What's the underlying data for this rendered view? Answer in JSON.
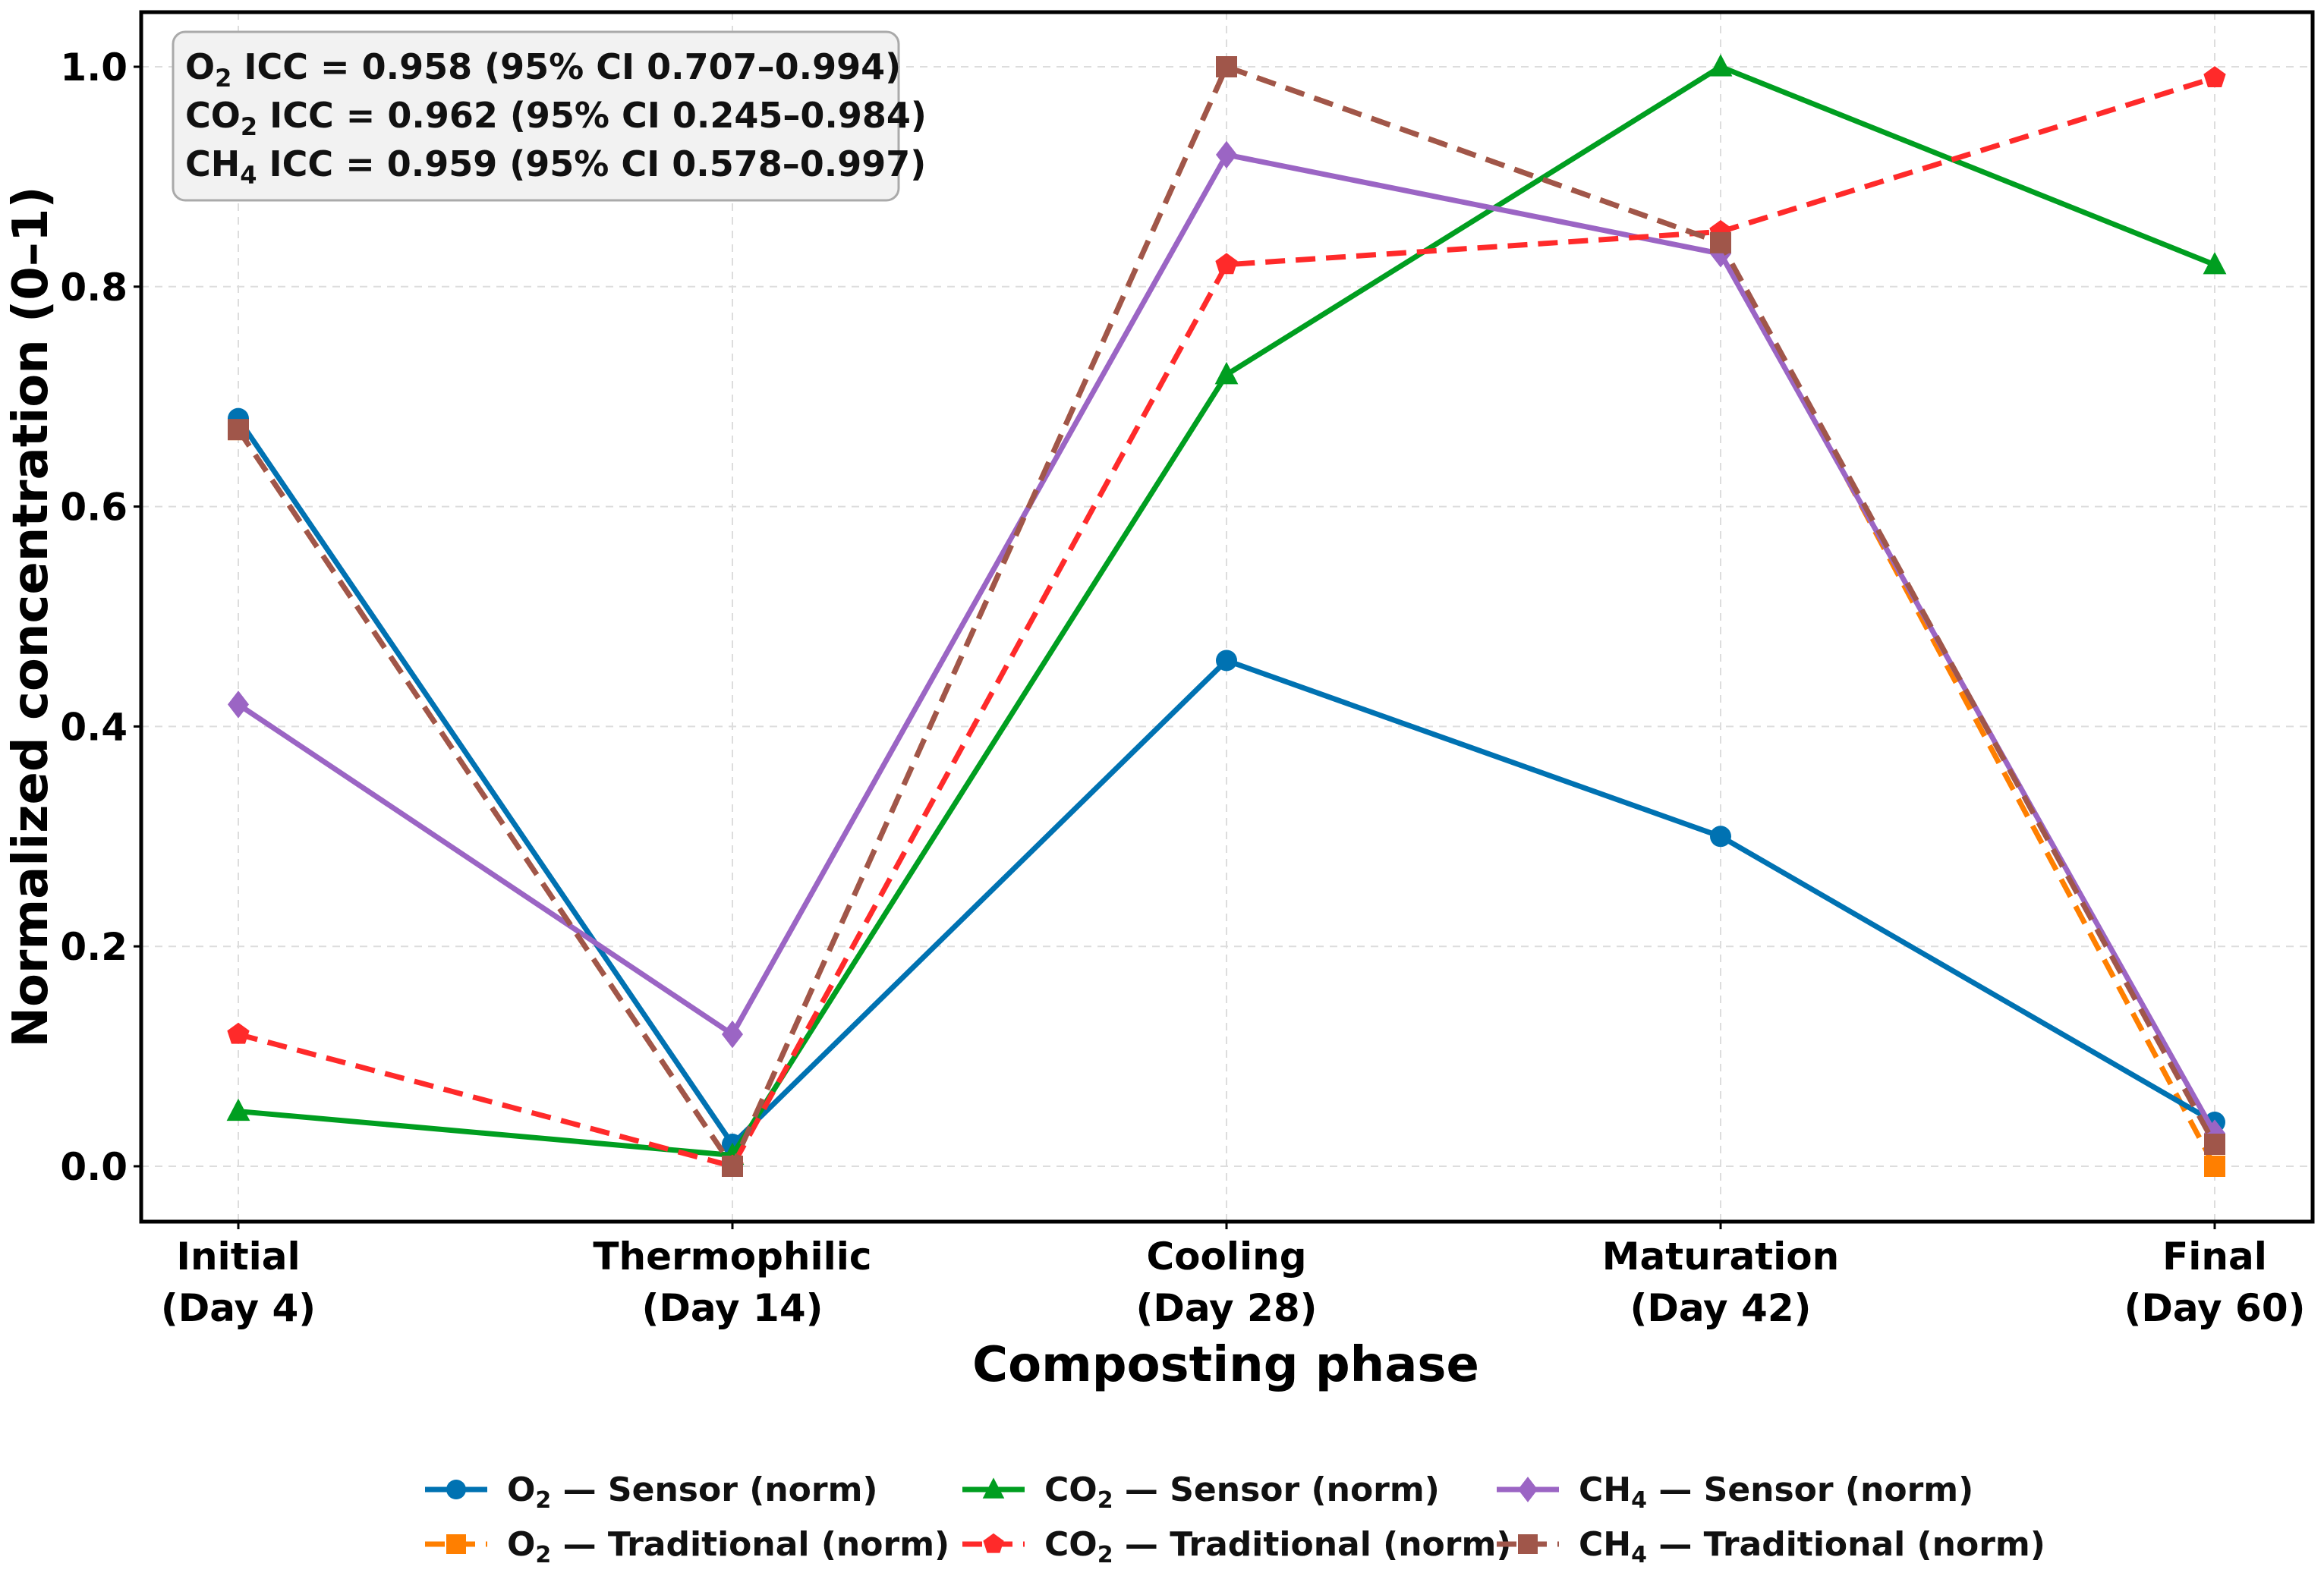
{
  "chart_data": {
    "type": "line",
    "title": "",
    "xlabel": "Composting phase",
    "ylabel": "Normalized concentration (0–1)",
    "ylim": [
      -0.05,
      1.05
    ],
    "grid": true,
    "categories": [
      [
        "Initial",
        "(Day 4)"
      ],
      [
        "Thermophilic",
        "(Day 14)"
      ],
      [
        "Cooling",
        "(Day 28)"
      ],
      [
        "Maturation",
        "(Day 42)"
      ],
      [
        "Final",
        "(Day 60)"
      ]
    ],
    "yticks": [
      "0.0",
      "0.2",
      "0.4",
      "0.6",
      "0.8",
      "1.0"
    ],
    "ytick_values": [
      0,
      0.2,
      0.4,
      0.6,
      0.8,
      1.0
    ],
    "annotation": [
      {
        "gas": "O",
        "sub": "2",
        "text": " ICC = 0.958 (95% CI 0.707–0.994)"
      },
      {
        "gas": "CO",
        "sub": "2",
        "text": " ICC = 0.962 (95% CI 0.245–0.984)"
      },
      {
        "gas": "CH",
        "sub": "4",
        "text": " ICC = 0.959 (95% CI 0.578–0.997)"
      }
    ],
    "legend_position": "bottom",
    "series": [
      {
        "name": "O2 — Sensor (norm)",
        "gas": "O",
        "sub": "2",
        "label": " — Sensor (norm)",
        "color": "#0072B2",
        "dash": "solid",
        "marker": "circle",
        "values": [
          0.68,
          0.02,
          0.46,
          0.3,
          0.04
        ]
      },
      {
        "name": "CO2 — Sensor (norm)",
        "gas": "CO",
        "sub": "2",
        "label": " — Sensor (norm)",
        "color": "#009E20",
        "dash": "solid",
        "marker": "triangle",
        "values": [
          0.05,
          0.01,
          0.72,
          1.0,
          0.82
        ]
      },
      {
        "name": "CH4 — Sensor (norm)",
        "gas": "CH",
        "sub": "4",
        "label": " — Sensor (norm)",
        "color": "#9B65C4",
        "dash": "solid",
        "marker": "diamond",
        "values": [
          0.42,
          0.12,
          0.92,
          0.83,
          0.03
        ]
      },
      {
        "name": "O2 — Traditional (norm)",
        "gas": "O",
        "sub": "2",
        "label": " — Traditional (norm)",
        "color": "#FF7F00",
        "dash": "dashed",
        "marker": "square",
        "values": [
          0.67,
          0.0,
          1.0,
          0.84,
          0.0
        ]
      },
      {
        "name": "CO2 — Traditional (norm)",
        "gas": "CO",
        "sub": "2",
        "label": " — Traditional (norm)",
        "color": "#FF2A2A",
        "dash": "dashed",
        "marker": "pentagon",
        "values": [
          0.12,
          0.0,
          0.82,
          0.85,
          0.99
        ]
      },
      {
        "name": "CH4 — Traditional (norm)",
        "gas": "CH",
        "sub": "4",
        "label": " — Traditional (norm)",
        "color": "#A0564A",
        "dash": "dashed",
        "marker": "square",
        "values": [
          0.67,
          0.0,
          1.0,
          0.84,
          0.02
        ]
      }
    ]
  }
}
